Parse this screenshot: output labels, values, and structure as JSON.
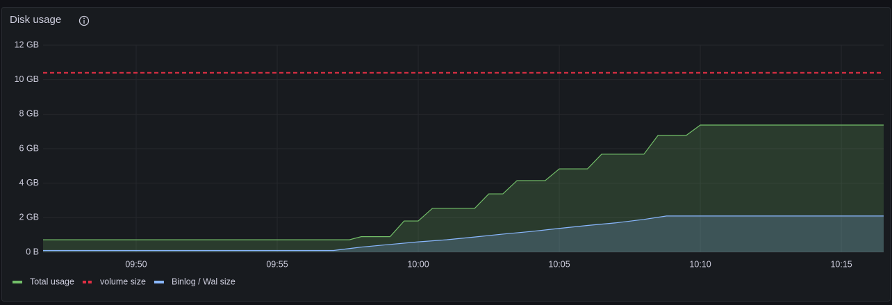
{
  "chart_data": {
    "type": "area",
    "title": "Disk usage",
    "xlim": [
      586.7,
      616.5
    ],
    "xticks": [
      {
        "value": 590,
        "label": "09:50"
      },
      {
        "value": 595,
        "label": "09:55"
      },
      {
        "value": 600,
        "label": "10:00"
      },
      {
        "value": 605,
        "label": "10:05"
      },
      {
        "value": 610,
        "label": "10:10"
      },
      {
        "value": 615,
        "label": "10:15"
      }
    ],
    "ylim": [
      0,
      12
    ],
    "yticks": [
      {
        "value": 0,
        "label": "0 B"
      },
      {
        "value": 2,
        "label": "2 GB"
      },
      {
        "value": 4,
        "label": "4 GB"
      },
      {
        "value": 6,
        "label": "6 GB"
      },
      {
        "value": 8,
        "label": "8 GB"
      },
      {
        "value": 10,
        "label": "10 GB"
      },
      {
        "value": 12,
        "label": "12 GB"
      }
    ],
    "grid": true,
    "legend": "bottom-left",
    "series": [
      {
        "name": "Total usage",
        "color": "#73bf69",
        "fill": true,
        "dash": false,
        "x": [
          586.7,
          597.56,
          597.98,
          599.0,
          599.5,
          600.0,
          600.5,
          602.0,
          602.5,
          603.0,
          603.5,
          604.5,
          605.0,
          606.0,
          606.5,
          608.0,
          608.5,
          609.5,
          610.0,
          616.5
        ],
        "values": [
          0.72,
          0.72,
          0.9,
          0.9,
          1.81,
          1.81,
          2.54,
          2.54,
          3.38,
          3.38,
          4.15,
          4.15,
          4.83,
          4.83,
          5.68,
          5.68,
          6.77,
          6.77,
          7.37,
          7.37
        ]
      },
      {
        "name": "volume size",
        "color": "#e02f44",
        "fill": false,
        "dash": true,
        "x": [
          586.7,
          616.5
        ],
        "values": [
          10.4,
          10.4
        ]
      },
      {
        "name": "Binlog / Wal size",
        "color": "#8ab8ff",
        "fill": true,
        "dash": false,
        "x": [
          586.7,
          597.0,
          598.0,
          599.0,
          600.0,
          601.0,
          602.0,
          603.0,
          604.0,
          605.0,
          606.0,
          607.0,
          608.0,
          608.8,
          616.5
        ],
        "values": [
          0.1,
          0.1,
          0.3,
          0.45,
          0.6,
          0.72,
          0.88,
          1.05,
          1.2,
          1.38,
          1.55,
          1.7,
          1.9,
          2.1,
          2.1
        ]
      }
    ]
  }
}
